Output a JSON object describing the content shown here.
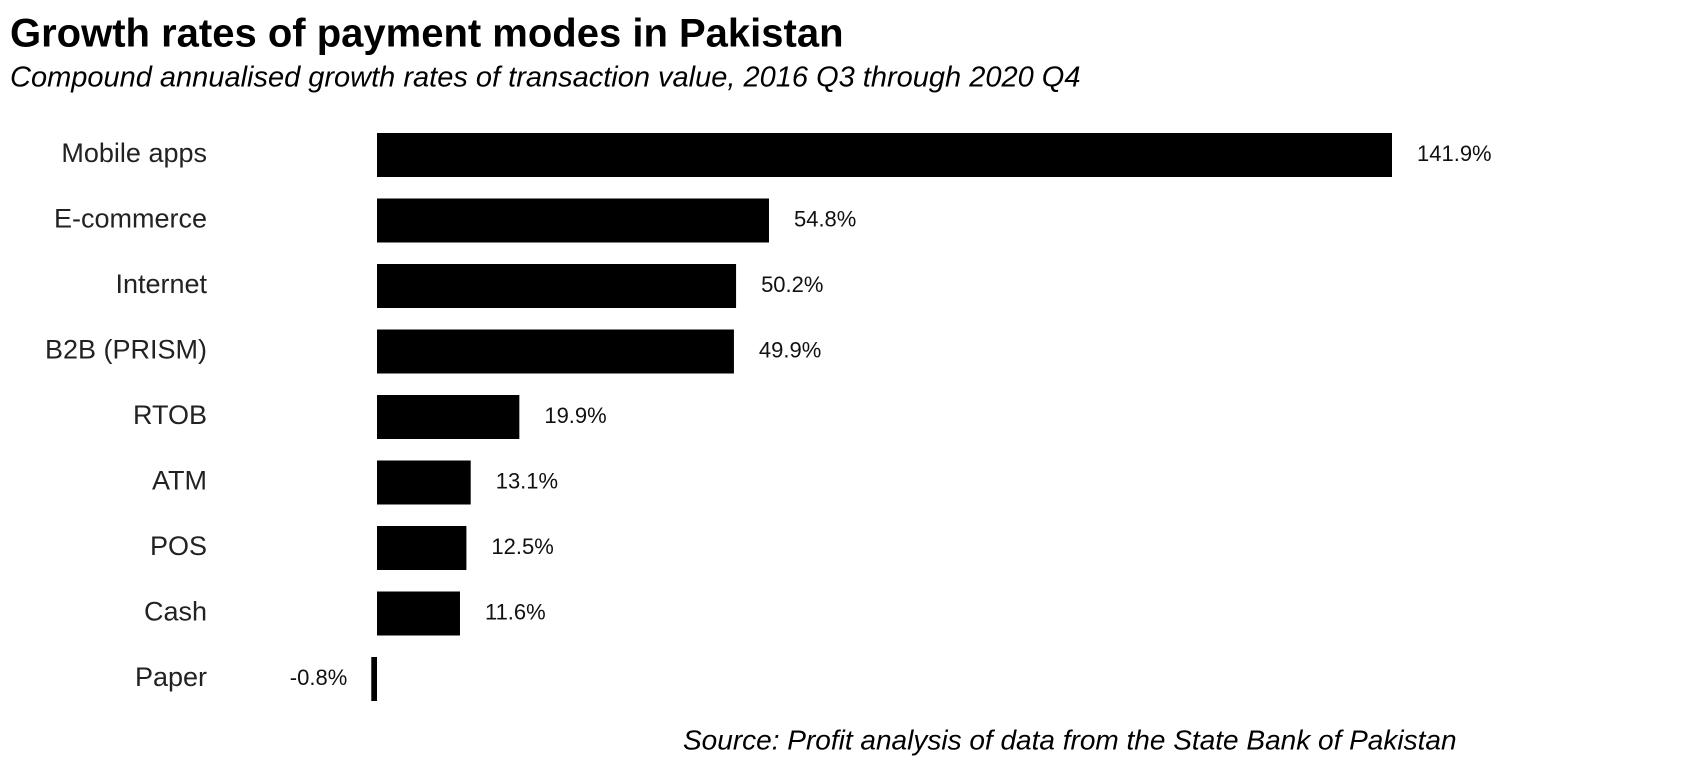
{
  "chart_data": {
    "type": "hbar",
    "title": "Growth rates of payment modes in Pakistan",
    "subtitle": "Compound annualised growth rates of transaction value, 2016 Q3 through 2020 Q4",
    "categories": [
      "Mobile apps",
      "E-commerce",
      "Internet",
      "B2B (PRISM)",
      "RTOB",
      "ATM",
      "POS",
      "Cash",
      "Paper"
    ],
    "values": [
      141.9,
      54.8,
      50.2,
      49.9,
      19.9,
      13.1,
      12.5,
      11.6,
      -0.8
    ],
    "value_labels": [
      "141.9%",
      "54.8%",
      "50.2%",
      "49.9%",
      "19.9%",
      "13.1%",
      "12.5%",
      "11.6%",
      "-0.8%"
    ],
    "color": "#000000",
    "source": "Source: Profit analysis of data from the State Bank of Pakistan"
  }
}
